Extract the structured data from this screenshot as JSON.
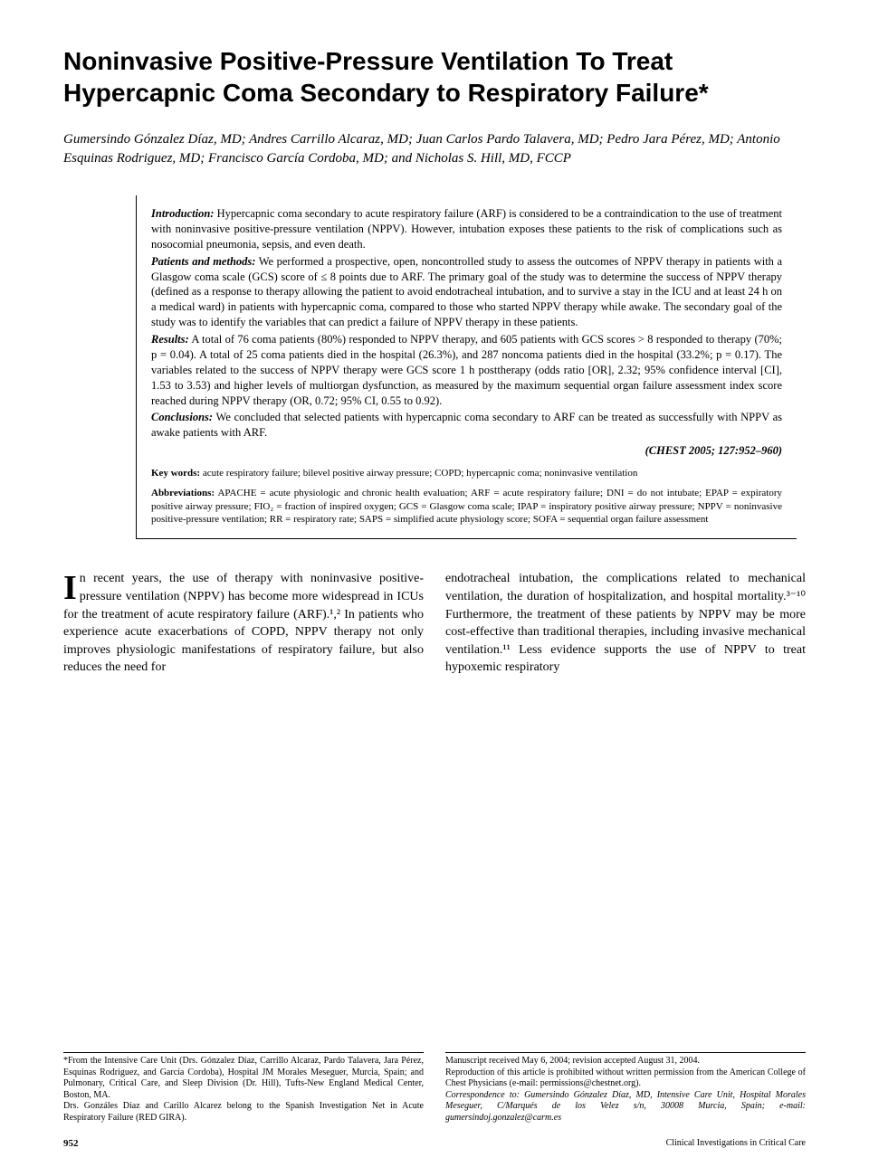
{
  "title": "Noninvasive Positive-Pressure Ventilation To Treat Hypercapnic Coma Secondary to Respiratory Failure*",
  "authors": "Gumersindo Gónzalez Díaz, MD; Andres Carrillo Alcaraz, MD; Juan Carlos Pardo Talavera, MD; Pedro Jara Pérez, MD; Antonio Esquinas Rodriguez, MD; Francisco García Cordoba, MD; and Nicholas S. Hill, MD, FCCP",
  "abstract": {
    "introduction_label": "Introduction:",
    "introduction": " Hypercapnic coma secondary to acute respiratory failure (ARF) is considered to be a contraindication to the use of treatment with noninvasive positive-pressure ventilation (NPPV). However, intubation exposes these patients to the risk of complications such as nosocomial pneumonia, sepsis, and even death.",
    "methods_label": "Patients and methods:",
    "methods": " We performed a prospective, open, noncontrolled study to assess the outcomes of NPPV therapy in patients with a Glasgow coma scale (GCS) score of ≤ 8 points due to ARF. The primary goal of the study was to determine the success of NPPV therapy (defined as a response to therapy allowing the patient to avoid endotracheal intubation, and to survive a stay in the ICU and at least 24 h on a medical ward) in patients with hypercapnic coma, compared to those who started NPPV therapy while awake. The secondary goal of the study was to identify the variables that can predict a failure of NPPV therapy in these patients.",
    "results_label": "Results:",
    "results": " A total of 76 coma patients (80%) responded to NPPV therapy, and 605 patients with GCS scores > 8 responded to therapy (70%; p = 0.04). A total of 25 coma patients died in the hospital (26.3%), and 287 noncoma patients died in the hospital (33.2%; p = 0.17). The variables related to the success of NPPV therapy were GCS score 1 h posttherapy (odds ratio [OR], 2.32; 95% confidence interval [CI], 1.53 to 3.53) and higher levels of multiorgan dysfunction, as measured by the maximum sequential organ failure assessment index score reached during NPPV therapy (OR, 0.72; 95% CI, 0.55 to 0.92).",
    "conclusions_label": "Conclusions:",
    "conclusions": " We concluded that selected patients with hypercapnic coma secondary to ARF can be treated as successfully with NPPV as awake patients with ARF.",
    "citation": "(CHEST 2005; 127:952–960)"
  },
  "keywords_label": "Key words:",
  "keywords": " acute respiratory failure; bilevel positive airway pressure; COPD; hypercapnic coma; noninvasive ventilation",
  "abbrev_label": "Abbreviations:",
  "abbreviations": " APACHE = acute physiologic and chronic health evaluation; ARF = acute respiratory failure; DNI = do not intubate; EPAP = expiratory positive airway pressure; FIO₂ = fraction of inspired oxygen; GCS = Glasgow coma scale; IPAP = inspiratory positive airway pressure; NPPV = noninvasive positive-pressure ventilation; RR = respiratory rate; SAPS = simplified acute physiology score; SOFA = sequential organ failure assessment",
  "body": {
    "dropcap": "I",
    "col1": "n recent years, the use of therapy with noninvasive positive-pressure ventilation (NPPV) has become more widespread in ICUs for the treatment of acute respiratory failure (ARF).¹,² In patients who experience acute exacerbations of COPD, NPPV therapy not only improves physiologic manifestations of respiratory failure, but also reduces the need for",
    "col2": "endotracheal intubation, the complications related to mechanical ventilation, the duration of hospitalization, and hospital mortality.³⁻¹⁰ Furthermore, the treatment of these patients by NPPV may be more cost-effective than traditional therapies, including invasive mechanical ventilation.¹¹ Less evidence supports the use of NPPV to treat hypoxemic respiratory"
  },
  "footnotes": {
    "left1": "*From the Intensive Care Unit (Drs. Gónzalez Díaz, Carrillo Alcaraz, Pardo Talavera, Jara Pérez, Esquinas Rodriguez, and García Cordoba), Hospital JM Morales Meseguer, Murcia, Spain; and Pulmonary, Critical Care, and Sleep Division (Dr. Hill), Tufts-New England Medical Center, Boston, MA.",
    "left2": "Drs. Gonzáles Díaz and Carillo Alcarez belong to the Spanish Investigation Net in Acute Respiratory Failure (RED GIRA).",
    "right1": "Manuscript received May 6, 2004; revision accepted August 31, 2004.",
    "right2": "Reproduction of this article is prohibited without written permission from the American College of Chest Physicians (e-mail: permissions@chestnet.org).",
    "right3": "Correspondence to: Gumersindo Gónzalez Díaz, MD, Intensive Care Unit, Hospital Morales Meseguer, C/Marqués de los Velez s/n, 30008 Murcia, Spain; e-mail: gumersindoj.gonzalez@carm.es"
  },
  "footer": {
    "page": "952",
    "section": "Clinical Investigations in Critical Care"
  }
}
